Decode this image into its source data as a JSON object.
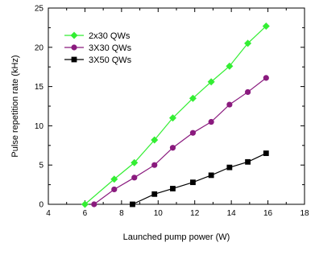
{
  "chart_data": {
    "type": "line",
    "xlabel": "Launched pump power (W)",
    "ylabel": "Pulse repetition rate (kHz)",
    "xlim": [
      4,
      18
    ],
    "ylim": [
      0,
      25
    ],
    "xticks": [
      4,
      6,
      8,
      10,
      12,
      14,
      16,
      18
    ],
    "yticks": [
      0,
      5,
      10,
      15,
      20,
      25
    ],
    "x_tick_labels": [
      "4",
      "6",
      "8",
      "10",
      "12",
      "14",
      "16",
      "18"
    ],
    "y_tick_labels": [
      "0",
      "5",
      "10",
      "15",
      "20",
      "25"
    ],
    "grid": false,
    "legend_position": "top-left",
    "series": [
      {
        "name": "2x30 QWs",
        "color": "#33ee33",
        "marker": "diamond",
        "x": [
          6.0,
          7.6,
          8.7,
          9.8,
          10.8,
          11.9,
          12.9,
          13.9,
          14.9,
          15.9
        ],
        "y": [
          0.0,
          3.2,
          5.3,
          8.2,
          11.0,
          13.5,
          15.6,
          17.6,
          20.5,
          22.7
        ]
      },
      {
        "name": "3X30 QWs",
        "color": "#8a1a7e",
        "marker": "circle",
        "x": [
          6.5,
          7.6,
          8.7,
          9.8,
          10.8,
          11.9,
          12.9,
          13.9,
          14.9,
          15.9
        ],
        "y": [
          0.0,
          1.9,
          3.4,
          5.0,
          7.2,
          9.1,
          10.5,
          12.7,
          14.3,
          16.1
        ]
      },
      {
        "name": "3X50 QWs",
        "color": "#000000",
        "marker": "square",
        "x": [
          8.6,
          9.8,
          10.8,
          11.9,
          12.9,
          13.9,
          14.9,
          15.9
        ],
        "y": [
          0.0,
          1.3,
          2.0,
          2.8,
          3.7,
          4.7,
          5.4,
          6.5
        ]
      }
    ]
  }
}
